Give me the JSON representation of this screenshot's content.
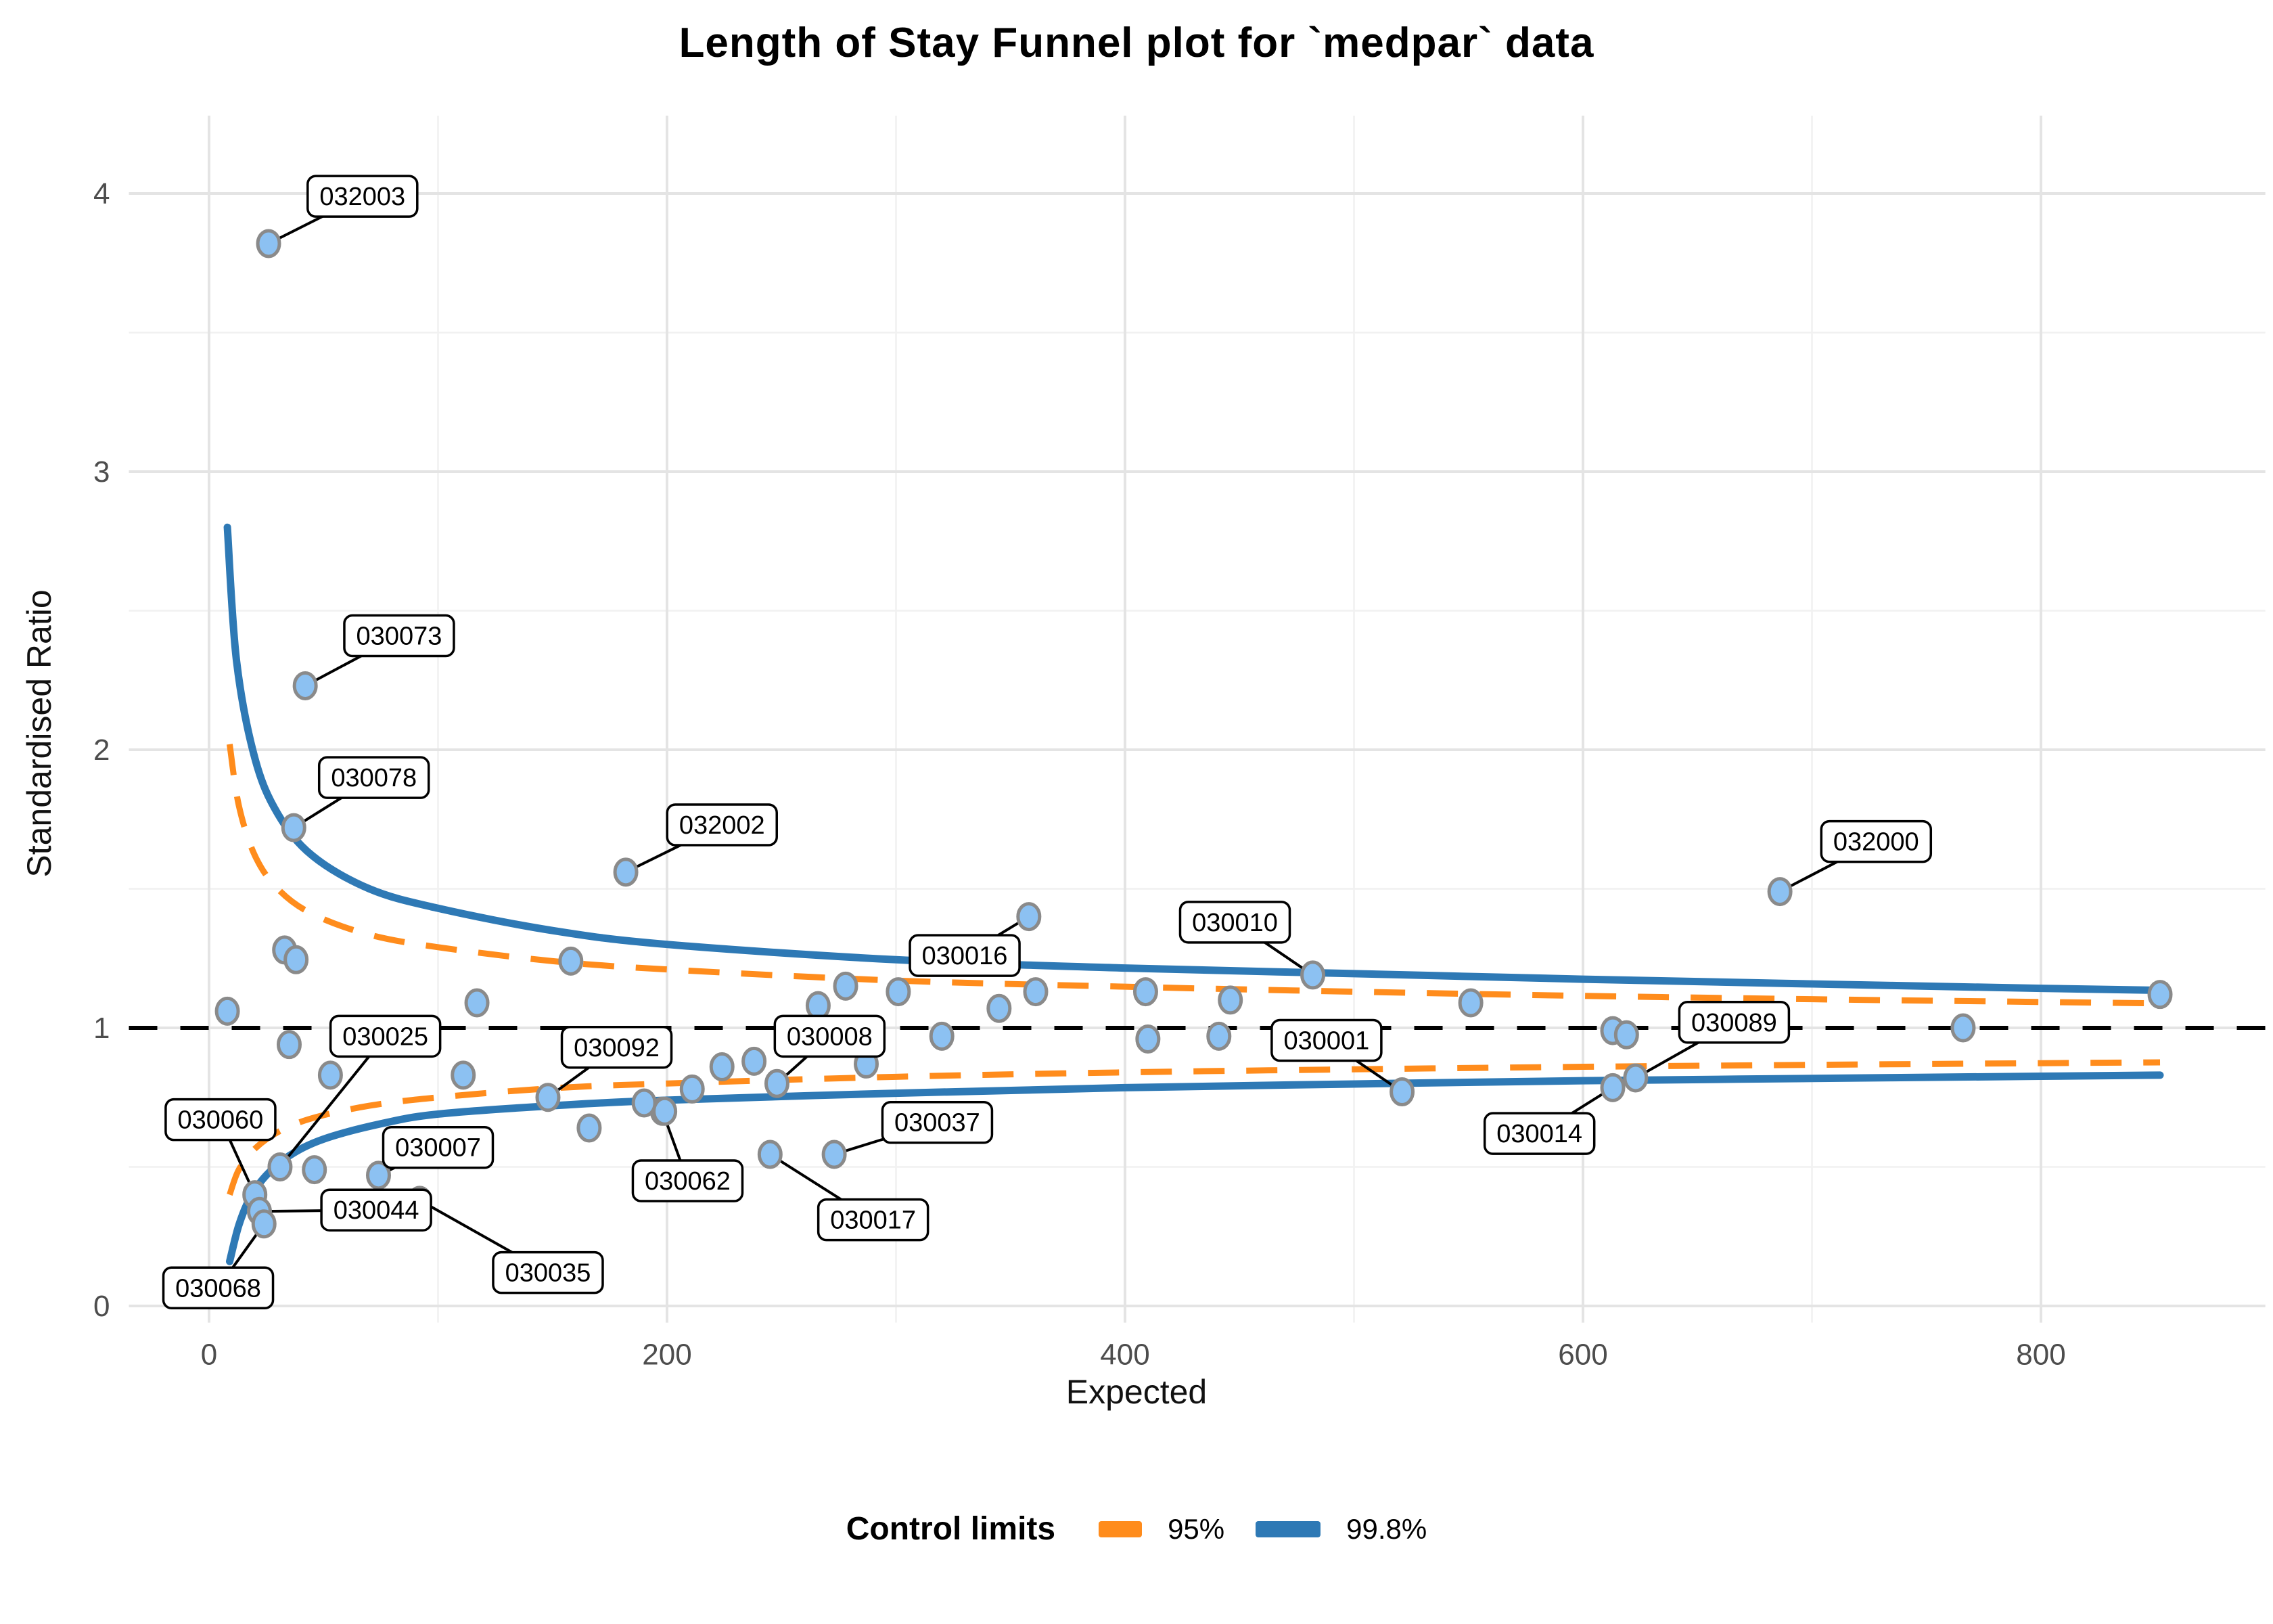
{
  "chart_data": {
    "type": "scatter",
    "title": "Length of Stay Funnel plot for `medpar` data",
    "xlabel": "Expected",
    "ylabel": "Standardised Ratio",
    "x_ticks": [
      0,
      200,
      400,
      600,
      800
    ],
    "y_ticks": [
      0,
      1,
      2,
      3,
      4
    ],
    "x_minor_ticks": [
      100,
      300,
      500,
      700
    ],
    "y_minor_ticks": [
      0.5,
      1.5,
      2.5,
      3.5
    ],
    "xlim": [
      -35,
      898
    ],
    "ylim": [
      -0.06,
      4.28
    ],
    "grid": "on",
    "reference_line_y": 1,
    "legend": {
      "title": "Control limits",
      "position": "bottom",
      "entries": [
        {
          "label": "95%",
          "color": "#FF8C1C",
          "style": "dashed"
        },
        {
          "label": "99.8%",
          "color": "#2E79B5",
          "style": "solid"
        }
      ]
    },
    "colors": {
      "point_fill": "#8CC1F2",
      "point_stroke": "#8A8A8A",
      "limit_95": "#FF8C1C",
      "limit_998": "#2E79B5",
      "reference": "#000000",
      "grid_major": "#E4E4E4",
      "grid_minor": "#F1F1F1",
      "tick_text": "#4D4D4D",
      "label_box_fill": "#FFFFFF",
      "label_box_border": "#000000"
    },
    "points": [
      {
        "e": 26,
        "sr": 3.82,
        "label": "032003",
        "label_pos": [
          67,
          3.99
        ]
      },
      {
        "e": 42,
        "sr": 2.23,
        "label": "030073",
        "label_pos": [
          83,
          2.41
        ]
      },
      {
        "e": 37,
        "sr": 1.72,
        "label": "030078",
        "label_pos": [
          72,
          1.9
        ]
      },
      {
        "e": 182,
        "sr": 1.56,
        "label": "032002",
        "label_pos": [
          224,
          1.73
        ]
      },
      {
        "e": 358,
        "sr": 1.4,
        "label": "030016",
        "label_pos": [
          330,
          1.26
        ]
      },
      {
        "e": 482,
        "sr": 1.19,
        "label": "030010",
        "label_pos": [
          448,
          1.38
        ]
      },
      {
        "e": 686,
        "sr": 1.49,
        "label": "032000",
        "label_pos": [
          728,
          1.67
        ]
      },
      {
        "e": 31,
        "sr": 0.5,
        "label": "030025",
        "label_pos": [
          77,
          0.97
        ]
      },
      {
        "e": 148,
        "sr": 0.75,
        "label": "030092",
        "label_pos": [
          178,
          0.93
        ]
      },
      {
        "e": 248,
        "sr": 0.8,
        "label": "030008",
        "label_pos": [
          271,
          0.97
        ]
      },
      {
        "e": 521,
        "sr": 0.77,
        "label": "030001",
        "label_pos": [
          488,
          0.955
        ]
      },
      {
        "e": 623,
        "sr": 0.82,
        "label": "030089",
        "label_pos": [
          666,
          1.02
        ]
      },
      {
        "e": 613,
        "sr": 0.785,
        "label": "030014",
        "label_pos": [
          581,
          0.62
        ]
      },
      {
        "e": 20,
        "sr": 0.4,
        "label": "030060",
        "label_pos": [
          5,
          0.67
        ]
      },
      {
        "e": 74,
        "sr": 0.47,
        "label": "030007",
        "label_pos": [
          100,
          0.57
        ]
      },
      {
        "e": 273,
        "sr": 0.545,
        "label": "030037",
        "label_pos": [
          318,
          0.66
        ]
      },
      {
        "e": 22,
        "sr": 0.34,
        "label": "030044",
        "label_pos": [
          73,
          0.345
        ]
      },
      {
        "e": 198,
        "sr": 0.7,
        "label": "030062",
        "label_pos": [
          209,
          0.45
        ]
      },
      {
        "e": 245,
        "sr": 0.545,
        "label": "030017",
        "label_pos": [
          290,
          0.31
        ]
      },
      {
        "e": 24,
        "sr": 0.295,
        "label": "030068",
        "label_pos": [
          4,
          0.065
        ]
      },
      {
        "e": 92,
        "sr": 0.38,
        "label": "030035",
        "label_pos": [
          148,
          0.12
        ]
      },
      {
        "e": 8,
        "sr": 1.06
      },
      {
        "e": 33,
        "sr": 1.28
      },
      {
        "e": 38,
        "sr": 1.245
      },
      {
        "e": 35,
        "sr": 0.94
      },
      {
        "e": 53,
        "sr": 0.83
      },
      {
        "e": 46,
        "sr": 0.49
      },
      {
        "e": 111,
        "sr": 0.83
      },
      {
        "e": 117,
        "sr": 1.09
      },
      {
        "e": 158,
        "sr": 1.24
      },
      {
        "e": 166,
        "sr": 0.64
      },
      {
        "e": 190,
        "sr": 0.73
      },
      {
        "e": 199,
        "sr": 0.7
      },
      {
        "e": 211,
        "sr": 0.78
      },
      {
        "e": 224,
        "sr": 0.86
      },
      {
        "e": 238,
        "sr": 0.88
      },
      {
        "e": 287,
        "sr": 0.87
      },
      {
        "e": 266,
        "sr": 1.08
      },
      {
        "e": 278,
        "sr": 1.15
      },
      {
        "e": 301,
        "sr": 1.13
      },
      {
        "e": 320,
        "sr": 0.97
      },
      {
        "e": 345,
        "sr": 1.07
      },
      {
        "e": 361,
        "sr": 1.13
      },
      {
        "e": 409,
        "sr": 1.13
      },
      {
        "e": 410,
        "sr": 0.96
      },
      {
        "e": 441,
        "sr": 0.97
      },
      {
        "e": 446,
        "sr": 1.1
      },
      {
        "e": 551,
        "sr": 1.09
      },
      {
        "e": 613,
        "sr": 0.99
      },
      {
        "e": 619,
        "sr": 0.975
      },
      {
        "e": 766,
        "sr": 1.0
      },
      {
        "e": 852,
        "sr": 1.12
      }
    ],
    "limits": {
      "p998_upper": [
        [
          8,
          2.8
        ],
        [
          12,
          2.32
        ],
        [
          20,
          1.97
        ],
        [
          30,
          1.77
        ],
        [
          45,
          1.62
        ],
        [
          70,
          1.5
        ],
        [
          100,
          1.43
        ],
        [
          150,
          1.35
        ],
        [
          200,
          1.3
        ],
        [
          300,
          1.245
        ],
        [
          400,
          1.215
        ],
        [
          500,
          1.195
        ],
        [
          600,
          1.175
        ],
        [
          700,
          1.158
        ],
        [
          800,
          1.142
        ],
        [
          852,
          1.135
        ]
      ],
      "p998_lower": [
        [
          9,
          0.16
        ],
        [
          13,
          0.29
        ],
        [
          18,
          0.39
        ],
        [
          25,
          0.47
        ],
        [
          35,
          0.54
        ],
        [
          50,
          0.6
        ],
        [
          75,
          0.655
        ],
        [
          100,
          0.69
        ],
        [
          150,
          0.72
        ],
        [
          200,
          0.74
        ],
        [
          300,
          0.765
        ],
        [
          400,
          0.785
        ],
        [
          500,
          0.798
        ],
        [
          600,
          0.81
        ],
        [
          700,
          0.818
        ],
        [
          800,
          0.826
        ],
        [
          852,
          0.83
        ]
      ],
      "p95_upper": [
        [
          9,
          2.02
        ],
        [
          13,
          1.8
        ],
        [
          20,
          1.62
        ],
        [
          30,
          1.5
        ],
        [
          45,
          1.41
        ],
        [
          70,
          1.335
        ],
        [
          100,
          1.29
        ],
        [
          150,
          1.24
        ],
        [
          200,
          1.21
        ],
        [
          300,
          1.17
        ],
        [
          400,
          1.148
        ],
        [
          500,
          1.13
        ],
        [
          600,
          1.115
        ],
        [
          700,
          1.103
        ],
        [
          800,
          1.093
        ],
        [
          852,
          1.088
        ]
      ],
      "p95_lower": [
        [
          9,
          0.4
        ],
        [
          13,
          0.49
        ],
        [
          20,
          0.565
        ],
        [
          30,
          0.625
        ],
        [
          45,
          0.675
        ],
        [
          70,
          0.72
        ],
        [
          100,
          0.75
        ],
        [
          150,
          0.783
        ],
        [
          200,
          0.8
        ],
        [
          300,
          0.824
        ],
        [
          400,
          0.84
        ],
        [
          500,
          0.851
        ],
        [
          600,
          0.86
        ],
        [
          700,
          0.867
        ],
        [
          800,
          0.873
        ],
        [
          852,
          0.876
        ]
      ]
    }
  }
}
